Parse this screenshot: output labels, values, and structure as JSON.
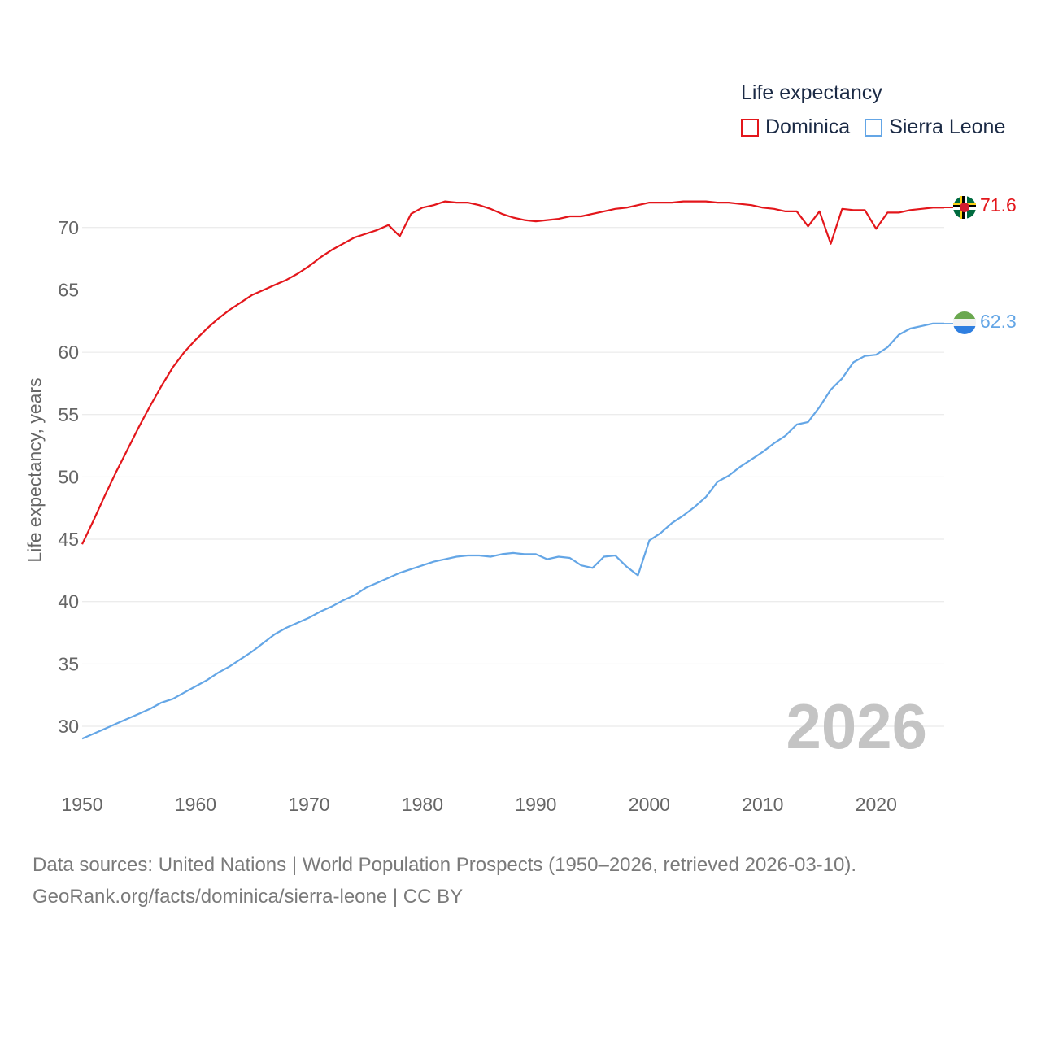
{
  "legend": {
    "title": "Life expectancy",
    "items": [
      {
        "label": "Dominica",
        "color": "#e3161b"
      },
      {
        "label": "Sierra Leone",
        "color": "#64a6e6"
      }
    ]
  },
  "footer": {
    "line1": "Data sources: United Nations | World Population Prospects (1950–2026, retrieved 2026-03-10).",
    "line2": "GeoRank.org/facts/dominica/sierra-leone | CC BY"
  },
  "chart_data": {
    "type": "line",
    "title": "Life expectancy",
    "xlabel": "",
    "ylabel": "Life expectancy, years",
    "xlim": [
      1950,
      2026
    ],
    "ylim": [
      27,
      74
    ],
    "yticks": [
      30,
      35,
      40,
      45,
      50,
      55,
      60,
      65,
      70
    ],
    "xticks": [
      1950,
      1960,
      1970,
      1980,
      1990,
      2000,
      2010,
      2020
    ],
    "current_year": "2026",
    "grid": true,
    "legend_position": "top-right",
    "x": [
      1950,
      1951,
      1952,
      1953,
      1954,
      1955,
      1956,
      1957,
      1958,
      1959,
      1960,
      1961,
      1962,
      1963,
      1964,
      1965,
      1966,
      1967,
      1968,
      1969,
      1970,
      1971,
      1972,
      1973,
      1974,
      1975,
      1976,
      1977,
      1978,
      1979,
      1980,
      1981,
      1982,
      1983,
      1984,
      1985,
      1986,
      1987,
      1988,
      1989,
      1990,
      1991,
      1992,
      1993,
      1994,
      1995,
      1996,
      1997,
      1998,
      1999,
      2000,
      2001,
      2002,
      2003,
      2004,
      2005,
      2006,
      2007,
      2008,
      2009,
      2010,
      2011,
      2012,
      2013,
      2014,
      2015,
      2016,
      2017,
      2018,
      2019,
      2020,
      2021,
      2022,
      2023,
      2024,
      2025,
      2026
    ],
    "series": [
      {
        "name": "Dominica",
        "color": "#e3161b",
        "end_label": "71.6",
        "values": [
          44.6,
          46.5,
          48.5,
          50.4,
          52.2,
          54.0,
          55.7,
          57.3,
          58.8,
          60.0,
          61.0,
          61.9,
          62.7,
          63.4,
          64.0,
          64.6,
          65.0,
          65.4,
          65.8,
          66.3,
          66.9,
          67.6,
          68.2,
          68.7,
          69.2,
          69.5,
          69.8,
          70.2,
          69.3,
          71.1,
          71.6,
          71.8,
          72.1,
          72.0,
          72.0,
          71.8,
          71.5,
          71.1,
          70.8,
          70.6,
          70.5,
          70.6,
          70.7,
          70.9,
          70.9,
          71.1,
          71.3,
          71.5,
          71.6,
          71.8,
          72.0,
          72.0,
          72.0,
          72.1,
          72.1,
          72.1,
          72.0,
          72.0,
          71.9,
          71.8,
          71.6,
          71.5,
          71.3,
          71.3,
          70.1,
          71.3,
          68.7,
          71.5,
          71.4,
          71.4,
          69.9,
          71.2,
          71.2,
          71.4,
          71.5,
          71.6,
          71.6
        ]
      },
      {
        "name": "Sierra Leone",
        "color": "#64a6e6",
        "end_label": "62.3",
        "values": [
          29.0,
          29.4,
          29.8,
          30.2,
          30.6,
          31.0,
          31.4,
          31.9,
          32.2,
          32.7,
          33.2,
          33.7,
          34.3,
          34.8,
          35.4,
          36.0,
          36.7,
          37.4,
          37.9,
          38.3,
          38.7,
          39.2,
          39.6,
          40.1,
          40.5,
          41.1,
          41.5,
          41.9,
          42.3,
          42.6,
          42.9,
          43.2,
          43.4,
          43.6,
          43.7,
          43.7,
          43.6,
          43.8,
          43.9,
          43.8,
          43.8,
          43.4,
          43.6,
          43.5,
          42.9,
          42.7,
          43.6,
          43.7,
          42.8,
          42.1,
          44.9,
          45.5,
          46.3,
          46.9,
          47.6,
          48.4,
          49.6,
          50.1,
          50.8,
          51.4,
          52.0,
          52.7,
          53.3,
          54.2,
          54.4,
          55.6,
          57.0,
          57.9,
          59.2,
          59.7,
          59.8,
          60.4,
          61.4,
          61.9,
          62.1,
          62.3,
          62.3
        ]
      }
    ]
  }
}
